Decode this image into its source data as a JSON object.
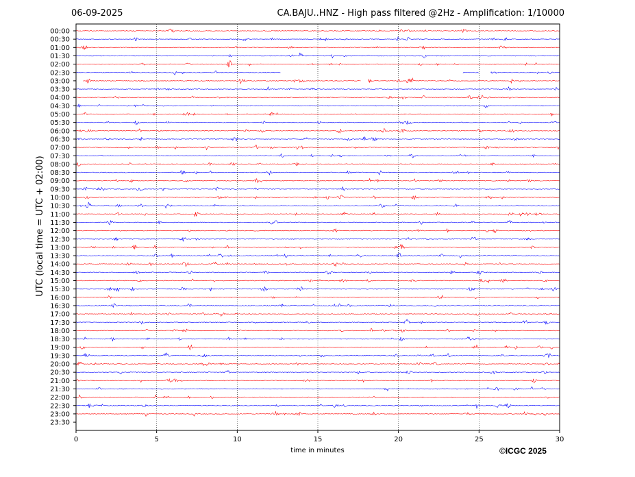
{
  "header": {
    "date": "06-09-2025",
    "title": "CA.BAJU..HNZ - High pass filtered @2Hz - Amplification: 1/10000"
  },
  "footer": {
    "copyright": "©ICGC 2025"
  },
  "chart_data": {
    "type": "line",
    "title": "CA.BAJU..HNZ - High pass filtered @2Hz - Amplification: 1/10000",
    "subtitle": "06-09-2025",
    "xlabel": "time in minutes",
    "ylabel": "UTC (local time = UTC + 02:00)",
    "xlim": [
      0,
      30
    ],
    "x_ticks": [
      "0",
      "5",
      "10",
      "15",
      "20",
      "25",
      "30"
    ],
    "x_gridlines": [
      5,
      10,
      15,
      20,
      25
    ],
    "grid": "vertical dotted at each x tick",
    "legend": "none",
    "trace_colors": [
      "#ff0000",
      "#0000ff"
    ],
    "trace_labels": [
      "00:00",
      "00:30",
      "01:00",
      "01:30",
      "02:00",
      "02:30",
      "03:00",
      "03:30",
      "04:00",
      "04:30",
      "05:00",
      "05:30",
      "06:00",
      "06:30",
      "07:00",
      "07:30",
      "08:00",
      "08:30",
      "09:00",
      "09:30",
      "10:00",
      "10:30",
      "11:00",
      "11:30",
      "12:00",
      "12:30",
      "13:00",
      "13:30",
      "14:00",
      "14:30",
      "15:00",
      "15:30",
      "16:00",
      "16:30",
      "17:00",
      "17:30",
      "18:00",
      "18:30",
      "19:00",
      "19:30",
      "20:00",
      "20:30",
      "21:00",
      "21:30",
      "22:00",
      "22:30",
      "23:00",
      "23:30"
    ],
    "data_gaps": [
      {
        "trace": "02:30",
        "from": 12.7,
        "to": 24.0
      },
      {
        "trace": "02:30",
        "from": 25.0,
        "to": 25.7
      },
      {
        "trace": "03:00",
        "from": 0.0,
        "to": 0.4
      },
      {
        "trace": "03:00",
        "from": 17.7,
        "to": 18.1
      }
    ],
    "empty_traces": [
      "23:30"
    ]
  }
}
